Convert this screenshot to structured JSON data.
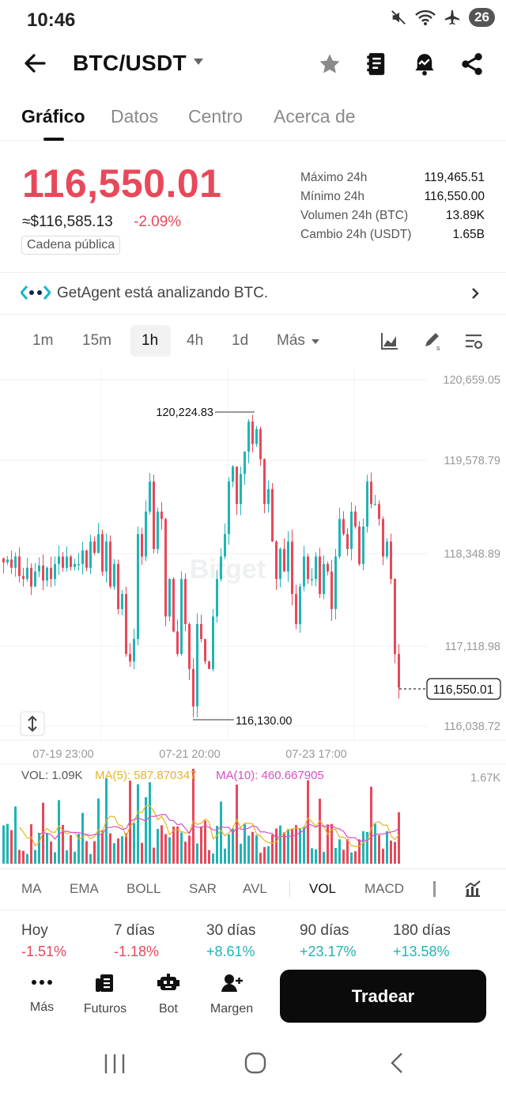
{
  "status": {
    "time": "10:46",
    "battery": "26"
  },
  "header": {
    "pair": "BTC/USDT"
  },
  "tabs": [
    "Gráfico",
    "Datos",
    "Centro",
    "Acerca de"
  ],
  "price": {
    "last": "116,550.01",
    "usd": "≈$116,585.13",
    "change": "-2.09%",
    "chain_badge": "Cadena pública",
    "up_color": "#1fb5b4",
    "down_color": "#e8485a"
  },
  "stats": [
    {
      "label": "Máximo 24h",
      "value": "119,465.51"
    },
    {
      "label": "Mínimo 24h",
      "value": "116,550.00"
    },
    {
      "label": "Volumen 24h (BTC)",
      "value": "13.89K"
    },
    {
      "label": "Cambio 24h (USDT)",
      "value": "1.65B"
    }
  ],
  "agent": {
    "text": "GetAgent está analizando BTC."
  },
  "intervals": [
    "1m",
    "15m",
    "1h",
    "4h",
    "1d",
    "Más"
  ],
  "active_interval": "1h",
  "chart_data": {
    "type": "candlestick",
    "watermark": "Bitget",
    "y_ticks": [
      "120,659.05",
      "119,578.79",
      "118,348.89",
      "117,118.98",
      "116,038.72"
    ],
    "x_ticks": [
      "07-19 23:00",
      "07-21 20:00",
      "07-23 17:00"
    ],
    "ylim": [
      116038.72,
      120659.05
    ],
    "high_annotation": "120,224.83",
    "low_annotation": "116,130.00",
    "current_price": "116,550.01",
    "volume": {
      "vol": "VOL: 1.09K",
      "ma5": "MA(5): 587.870347",
      "ma10": "MA(10): 460.667905",
      "max_tick": "1.67K",
      "ma5_color": "#e6b422",
      "ma10_color": "#d84fc6"
    }
  },
  "indicators": [
    "MA",
    "EMA",
    "BOLL",
    "SAR",
    "AVL",
    "VOL",
    "MACD"
  ],
  "performance": [
    {
      "label": "Hoy",
      "value": "-1.51%",
      "dir": "down"
    },
    {
      "label": "7 días",
      "value": "-1.18%",
      "dir": "down"
    },
    {
      "label": "30 días",
      "value": "+8.61%",
      "dir": "up"
    },
    {
      "label": "90 días",
      "value": "+23.17%",
      "dir": "up"
    },
    {
      "label": "180 días",
      "value": "+13.58%",
      "dir": "up"
    }
  ],
  "bottom_nav": [
    "Más",
    "Futuros",
    "Bot",
    "Margen"
  ],
  "trade_button": "Tradear"
}
